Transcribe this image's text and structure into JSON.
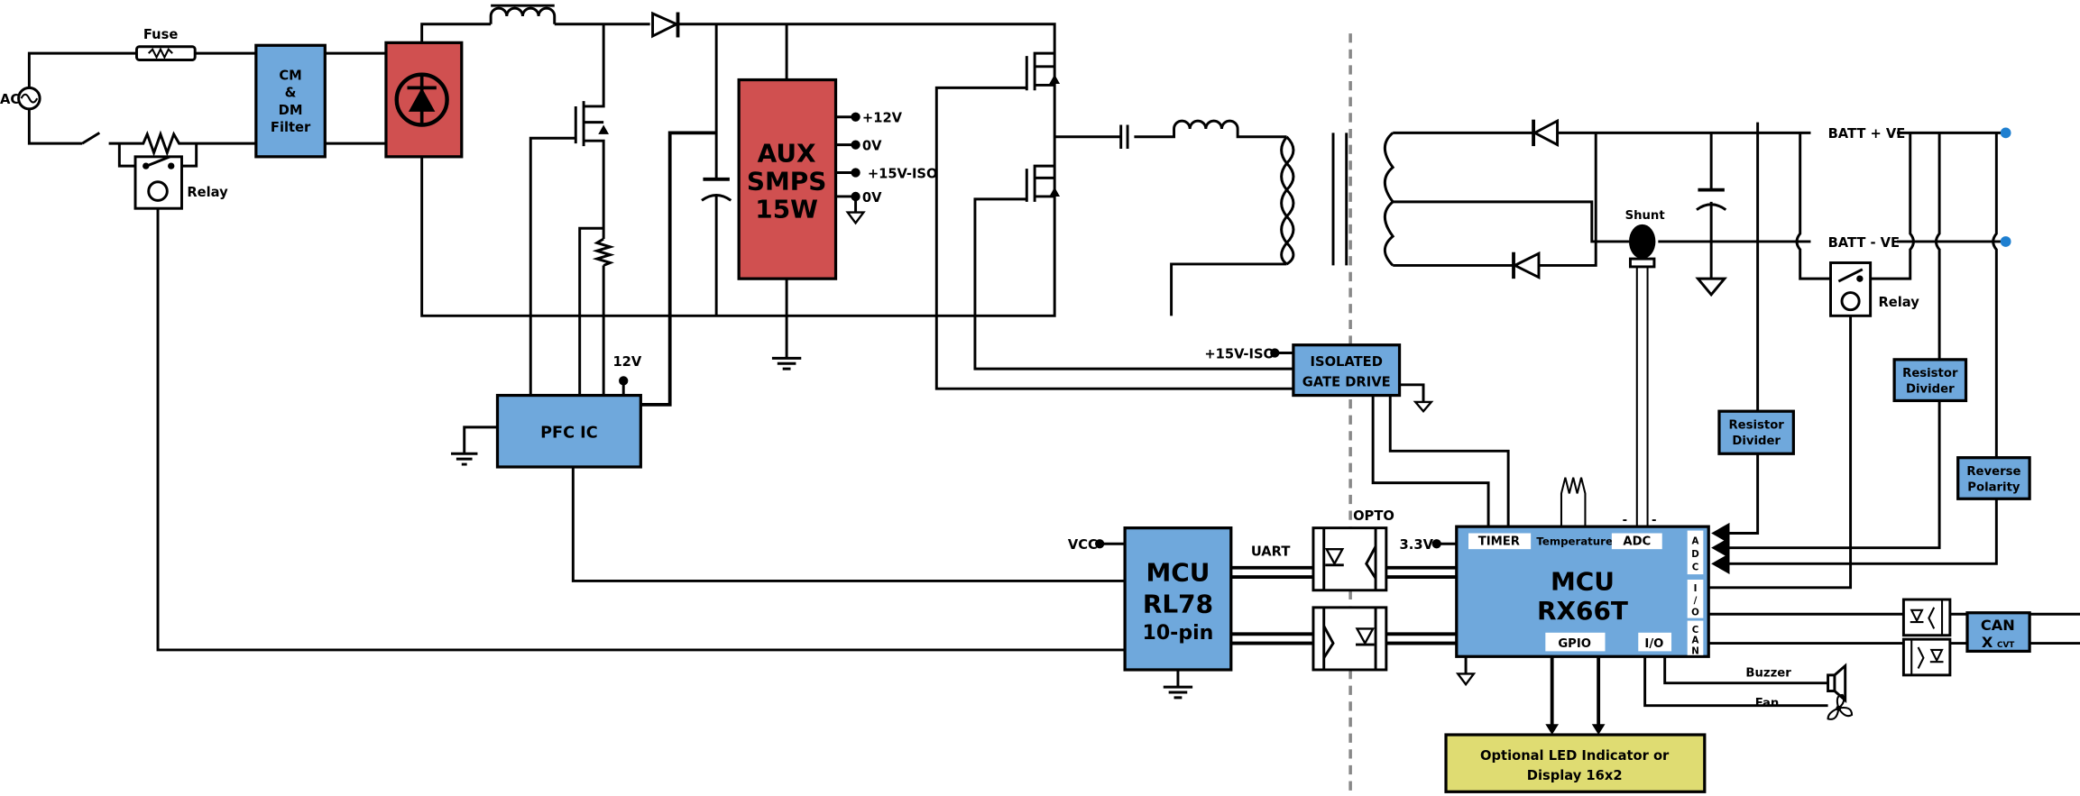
{
  "colors": {
    "filter_block": "#6FA8DC",
    "power_block": "#D05050",
    "display_block": "#DFDC72",
    "isolation_line": "#888888",
    "battery_terminal": "#1E7FD0"
  },
  "input": {
    "ac": "AC",
    "fuse": "Fuse",
    "relay": "Relay",
    "filter": [
      "CM",
      "&",
      "DM",
      "Filter"
    ]
  },
  "aux": {
    "title": [
      "AUX",
      "SMPS",
      "15W"
    ],
    "outputs": [
      "+12V",
      "0V",
      "+15V-ISO",
      "0V"
    ]
  },
  "pfc": {
    "label": "PFC IC",
    "supply": "12V"
  },
  "gate_drive": {
    "supply": "+15V-ISO",
    "label": [
      "ISOLATED",
      "GATE DRIVE"
    ]
  },
  "output": {
    "batt_pos": "BATT + VE",
    "batt_neg": "BATT - VE",
    "shunt": "Shunt",
    "relay": "Relay",
    "divider1": [
      "Resistor",
      "Divider"
    ],
    "divider2": [
      "Resistor",
      "Divider"
    ],
    "reverse": [
      "Reverse",
      "Polarity"
    ]
  },
  "rl78": {
    "title": [
      "MCU",
      "RL78"
    ],
    "sub": "10-pin",
    "vcc": "VCC",
    "uart": "UART"
  },
  "opto": {
    "label": "OPTO",
    "supply": "3.3V"
  },
  "rx66t": {
    "title": [
      "MCU",
      "RX66T"
    ],
    "timer": "TIMER",
    "temperature": "Temperature",
    "adc": "ADC",
    "gpio": "GPIO",
    "io": "I/O",
    "side_adc": [
      "A",
      "D",
      "C"
    ],
    "side_io": [
      "I",
      "/",
      "O"
    ],
    "side_can": [
      "C",
      "A",
      "N"
    ],
    "minus": "-"
  },
  "peripherals": {
    "buzzer": "Buzzer",
    "fan": "Fan",
    "can": "CAN",
    "can_sub": "X",
    "can_sub2": "CVT"
  },
  "display": {
    "label": [
      "Optional LED Indicator or",
      "Display 16x2"
    ]
  }
}
